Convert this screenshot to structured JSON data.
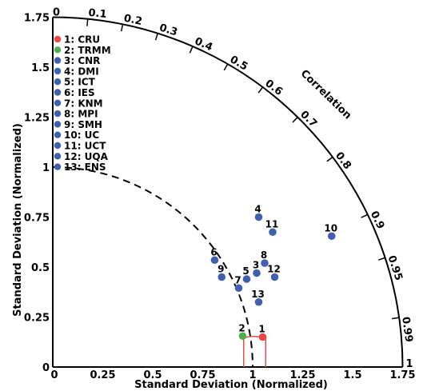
{
  "chart_data": {
    "type": "scatter",
    "subtype": "taylor-diagram",
    "xlabel": "Standard Deviation (Normalized)",
    "ylabel": "Standard Deviation (Normalized)",
    "arc_label": "Correlation",
    "xlim": [
      0,
      1.75
    ],
    "ylim": [
      0,
      1.75
    ],
    "x_ticks": [
      "0",
      "0.25",
      "0.5",
      "0.75",
      "1",
      "1.25",
      "1.5",
      "1.75"
    ],
    "y_ticks": [
      "0",
      "0.25",
      "0.5",
      "0.75",
      "1",
      "1.25",
      "1.5",
      "1.75"
    ],
    "correlation_ticks": [
      {
        "label": "0",
        "value": 0
      },
      {
        "label": "0.1",
        "value": 0.1
      },
      {
        "label": "0.2",
        "value": 0.2
      },
      {
        "label": "0.3",
        "value": 0.3
      },
      {
        "label": "0.4",
        "value": 0.4
      },
      {
        "label": "0.5",
        "value": 0.5
      },
      {
        "label": "0.6",
        "value": 0.6
      },
      {
        "label": "0.7",
        "value": 0.7
      },
      {
        "label": "0.8",
        "value": 0.8
      },
      {
        "label": "0.9",
        "value": 0.9
      },
      {
        "label": "0.95",
        "value": 0.95
      },
      {
        "label": "0.99",
        "value": 0.99
      },
      {
        "label": "1",
        "value": 1
      }
    ],
    "reference_std": 1.0,
    "legend_position": "top-left",
    "colors": {
      "CRU": "#ef4444",
      "TRMM": "#4caf50",
      "models": "#3f5fb0",
      "ref_box": "#e05050"
    },
    "points": [
      {
        "id": "1",
        "name": "CRU",
        "x": 1.05,
        "y": 0.15,
        "color": "#ef4444"
      },
      {
        "id": "2",
        "name": "TRMM",
        "x": 0.95,
        "y": 0.155,
        "color": "#4caf50"
      },
      {
        "id": "3",
        "name": "CNR",
        "x": 1.02,
        "y": 0.47,
        "color": "#3f5fb0"
      },
      {
        "id": "4",
        "name": "DMI",
        "x": 1.03,
        "y": 0.75,
        "color": "#3f5fb0"
      },
      {
        "id": "5",
        "name": "ICT",
        "x": 0.97,
        "y": 0.44,
        "color": "#3f5fb0"
      },
      {
        "id": "6",
        "name": "IES",
        "x": 0.81,
        "y": 0.535,
        "color": "#3f5fb0"
      },
      {
        "id": "7",
        "name": "KNM",
        "x": 0.93,
        "y": 0.395,
        "color": "#3f5fb0"
      },
      {
        "id": "8",
        "name": "MPI",
        "x": 1.06,
        "y": 0.52,
        "color": "#3f5fb0"
      },
      {
        "id": "9",
        "name": "SMH",
        "x": 0.845,
        "y": 0.45,
        "color": "#3f5fb0"
      },
      {
        "id": "10",
        "name": "UC",
        "x": 1.395,
        "y": 0.655,
        "color": "#3f5fb0"
      },
      {
        "id": "11",
        "name": "UCT",
        "x": 1.1,
        "y": 0.675,
        "color": "#3f5fb0"
      },
      {
        "id": "12",
        "name": "UQA",
        "x": 1.11,
        "y": 0.45,
        "color": "#3f5fb0"
      },
      {
        "id": "13",
        "name": "ENS",
        "x": 1.03,
        "y": 0.325,
        "color": "#3f5fb0"
      }
    ],
    "legend": [
      {
        "text": "1:  CRU",
        "color": "#ef4444"
      },
      {
        "text": "2:  TRMM",
        "color": "#4caf50"
      },
      {
        "text": "3:  CNR",
        "color": "#3f5fb0"
      },
      {
        "text": "4:  DMI",
        "color": "#3f5fb0"
      },
      {
        "text": "5:  ICT",
        "color": "#3f5fb0"
      },
      {
        "text": "6:  IES",
        "color": "#3f5fb0"
      },
      {
        "text": "7:  KNM",
        "color": "#3f5fb0"
      },
      {
        "text": "8:  MPI",
        "color": "#3f5fb0"
      },
      {
        "text": "9:  SMH",
        "color": "#3f5fb0"
      },
      {
        "text": "10:  UC",
        "color": "#3f5fb0"
      },
      {
        "text": "11:  UCT",
        "color": "#3f5fb0"
      },
      {
        "text": "12:  UQA",
        "color": "#3f5fb0"
      },
      {
        "text": "13:  ENS",
        "color": "#3f5fb0"
      }
    ]
  }
}
